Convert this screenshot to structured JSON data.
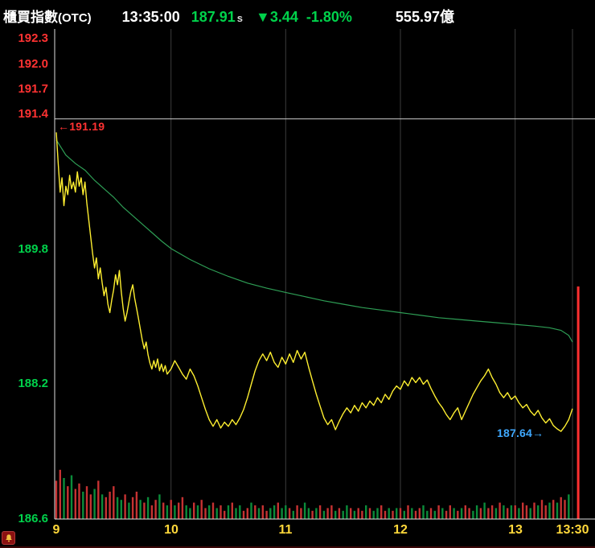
{
  "header": {
    "title": "櫃買指數",
    "title_suffix": "(OTC)",
    "time": "13:35:00",
    "price": "187.91",
    "price_flag": "s",
    "change": "▼3.44",
    "change_pct": "-1.80%",
    "turnover": "555.97億"
  },
  "colors": {
    "up_red": "#ff3232",
    "down_green": "#00d24b",
    "price_line": "#fdee30",
    "avg_line": "#2e9e55",
    "vol_red": "#c63232",
    "vol_green": "#0b8c3a",
    "spike_red": "#ff3030",
    "x_label": "#ffd83a",
    "grid": "#3c3c3c",
    "axis": "#dedede",
    "pc_line": "#cfcfcf",
    "annotation_blue": "#3fa9ff",
    "bell_bg": "#8a1111",
    "bell_glyph": "#f0c040"
  },
  "chart_data": {
    "type": "line",
    "title": "櫃買指數(OTC) intraday price / average / volume",
    "prev_close": 191.35,
    "open": 191.19,
    "last": 187.91,
    "low": 187.64,
    "annotations": {
      "open_label": "←191.19",
      "low_label": "187.64→"
    },
    "x_axis": {
      "range_minutes": [
        0,
        270
      ],
      "labels": [
        {
          "t": 0,
          "text": "9"
        },
        {
          "t": 60,
          "text": "10"
        },
        {
          "t": 120,
          "text": "11"
        },
        {
          "t": 180,
          "text": "12"
        },
        {
          "t": 240,
          "text": "13"
        },
        {
          "t": 270,
          "text": "13:30"
        }
      ]
    },
    "y_axis": {
      "min": 186.6,
      "max": 192.4,
      "labels": [
        {
          "v": 192.3,
          "tone": "up"
        },
        {
          "v": 192.0,
          "tone": "up"
        },
        {
          "v": 191.7,
          "tone": "up"
        },
        {
          "v": 191.4,
          "tone": "up"
        },
        {
          "v": 189.8,
          "tone": "down"
        },
        {
          "v": 188.2,
          "tone": "down"
        },
        {
          "v": 186.6,
          "tone": "down"
        }
      ]
    },
    "price_series": [
      [
        0,
        191.19
      ],
      [
        1,
        190.82
      ],
      [
        2,
        190.48
      ],
      [
        3,
        190.65
      ],
      [
        4,
        190.32
      ],
      [
        5,
        190.55
      ],
      [
        6,
        190.45
      ],
      [
        7,
        190.68
      ],
      [
        8,
        190.52
      ],
      [
        9,
        190.6
      ],
      [
        10,
        190.48
      ],
      [
        11,
        190.72
      ],
      [
        12,
        190.55
      ],
      [
        13,
        190.65
      ],
      [
        14,
        190.45
      ],
      [
        15,
        190.6
      ],
      [
        16,
        190.35
      ],
      [
        17,
        190.15
      ],
      [
        18,
        189.95
      ],
      [
        19,
        189.75
      ],
      [
        20,
        189.58
      ],
      [
        21,
        189.7
      ],
      [
        22,
        189.45
      ],
      [
        23,
        189.58
      ],
      [
        24,
        189.4
      ],
      [
        25,
        189.25
      ],
      [
        26,
        189.35
      ],
      [
        27,
        189.15
      ],
      [
        28,
        189.05
      ],
      [
        29,
        189.2
      ],
      [
        30,
        189.32
      ],
      [
        31,
        189.5
      ],
      [
        32,
        189.38
      ],
      [
        33,
        189.55
      ],
      [
        34,
        189.3
      ],
      [
        35,
        189.1
      ],
      [
        36,
        188.95
      ],
      [
        37,
        189.05
      ],
      [
        38,
        189.18
      ],
      [
        39,
        189.3
      ],
      [
        40,
        189.38
      ],
      [
        41,
        189.22
      ],
      [
        42,
        189.1
      ],
      [
        43,
        188.98
      ],
      [
        44,
        188.85
      ],
      [
        45,
        188.72
      ],
      [
        46,
        188.62
      ],
      [
        47,
        188.7
      ],
      [
        48,
        188.55
      ],
      [
        49,
        188.45
      ],
      [
        50,
        188.38
      ],
      [
        51,
        188.48
      ],
      [
        52,
        188.4
      ],
      [
        53,
        188.5
      ],
      [
        54,
        188.36
      ],
      [
        55,
        188.44
      ],
      [
        56,
        188.35
      ],
      [
        57,
        188.42
      ],
      [
        58,
        188.32
      ],
      [
        60,
        188.38
      ],
      [
        62,
        188.48
      ],
      [
        64,
        188.4
      ],
      [
        66,
        188.32
      ],
      [
        68,
        188.26
      ],
      [
        70,
        188.38
      ],
      [
        72,
        188.3
      ],
      [
        74,
        188.18
      ],
      [
        76,
        188.04
      ],
      [
        78,
        187.9
      ],
      [
        80,
        187.78
      ],
      [
        82,
        187.7
      ],
      [
        84,
        187.78
      ],
      [
        86,
        187.68
      ],
      [
        88,
        187.75
      ],
      [
        90,
        187.7
      ],
      [
        92,
        187.78
      ],
      [
        94,
        187.72
      ],
      [
        96,
        187.8
      ],
      [
        98,
        187.9
      ],
      [
        100,
        188.04
      ],
      [
        102,
        188.2
      ],
      [
        104,
        188.36
      ],
      [
        106,
        188.48
      ],
      [
        108,
        188.56
      ],
      [
        110,
        188.48
      ],
      [
        112,
        188.58
      ],
      [
        114,
        188.46
      ],
      [
        116,
        188.4
      ],
      [
        118,
        188.52
      ],
      [
        120,
        188.44
      ],
      [
        122,
        188.56
      ],
      [
        124,
        188.46
      ],
      [
        126,
        188.6
      ],
      [
        128,
        188.5
      ],
      [
        130,
        188.58
      ],
      [
        132,
        188.4
      ],
      [
        134,
        188.24
      ],
      [
        136,
        188.08
      ],
      [
        138,
        187.94
      ],
      [
        140,
        187.8
      ],
      [
        142,
        187.72
      ],
      [
        144,
        187.78
      ],
      [
        146,
        187.66
      ],
      [
        148,
        187.76
      ],
      [
        150,
        187.85
      ],
      [
        152,
        187.92
      ],
      [
        154,
        187.86
      ],
      [
        156,
        187.95
      ],
      [
        158,
        187.88
      ],
      [
        160,
        187.98
      ],
      [
        162,
        187.92
      ],
      [
        164,
        188.0
      ],
      [
        166,
        187.95
      ],
      [
        168,
        188.04
      ],
      [
        170,
        187.98
      ],
      [
        172,
        188.08
      ],
      [
        174,
        188.02
      ],
      [
        176,
        188.12
      ],
      [
        178,
        188.18
      ],
      [
        180,
        188.14
      ],
      [
        182,
        188.24
      ],
      [
        184,
        188.18
      ],
      [
        186,
        188.28
      ],
      [
        188,
        188.22
      ],
      [
        190,
        188.28
      ],
      [
        192,
        188.2
      ],
      [
        194,
        188.25
      ],
      [
        196,
        188.15
      ],
      [
        198,
        188.06
      ],
      [
        200,
        187.98
      ],
      [
        202,
        187.92
      ],
      [
        204,
        187.84
      ],
      [
        206,
        187.78
      ],
      [
        208,
        187.86
      ],
      [
        210,
        187.92
      ],
      [
        212,
        187.78
      ],
      [
        214,
        187.88
      ],
      [
        216,
        187.98
      ],
      [
        218,
        188.08
      ],
      [
        220,
        188.16
      ],
      [
        222,
        188.24
      ],
      [
        224,
        188.3
      ],
      [
        226,
        188.38
      ],
      [
        228,
        188.28
      ],
      [
        230,
        188.2
      ],
      [
        232,
        188.1
      ],
      [
        234,
        188.04
      ],
      [
        236,
        188.1
      ],
      [
        238,
        188.02
      ],
      [
        240,
        188.06
      ],
      [
        242,
        187.98
      ],
      [
        244,
        187.92
      ],
      [
        246,
        187.96
      ],
      [
        248,
        187.88
      ],
      [
        250,
        187.83
      ],
      [
        252,
        187.89
      ],
      [
        254,
        187.8
      ],
      [
        256,
        187.74
      ],
      [
        258,
        187.79
      ],
      [
        260,
        187.71
      ],
      [
        262,
        187.67
      ],
      [
        264,
        187.64
      ],
      [
        266,
        187.7
      ],
      [
        268,
        187.78
      ],
      [
        270,
        187.91
      ]
    ],
    "avg_series": [
      [
        0,
        191.1
      ],
      [
        5,
        190.92
      ],
      [
        10,
        190.82
      ],
      [
        15,
        190.74
      ],
      [
        20,
        190.62
      ],
      [
        25,
        190.52
      ],
      [
        30,
        190.42
      ],
      [
        35,
        190.3
      ],
      [
        40,
        190.2
      ],
      [
        45,
        190.1
      ],
      [
        50,
        190.0
      ],
      [
        55,
        189.9
      ],
      [
        60,
        189.81
      ],
      [
        70,
        189.68
      ],
      [
        80,
        189.57
      ],
      [
        90,
        189.48
      ],
      [
        100,
        189.4
      ],
      [
        110,
        189.34
      ],
      [
        120,
        189.29
      ],
      [
        130,
        189.24
      ],
      [
        140,
        189.19
      ],
      [
        150,
        189.15
      ],
      [
        160,
        189.11
      ],
      [
        170,
        189.08
      ],
      [
        180,
        189.05
      ],
      [
        190,
        189.02
      ],
      [
        200,
        188.99
      ],
      [
        210,
        188.97
      ],
      [
        220,
        188.95
      ],
      [
        230,
        188.93
      ],
      [
        240,
        188.91
      ],
      [
        250,
        188.89
      ],
      [
        258,
        188.87
      ],
      [
        264,
        188.84
      ],
      [
        268,
        188.78
      ],
      [
        270,
        188.7
      ]
    ],
    "volume": {
      "step_minutes": 2,
      "values": [
        14,
        18,
        15,
        12,
        16,
        11,
        13,
        10,
        12,
        9,
        11,
        14,
        9,
        8,
        10,
        12,
        8,
        7,
        9,
        6,
        8,
        10,
        7,
        6,
        8,
        5,
        7,
        9,
        6,
        5,
        7,
        5,
        6,
        8,
        5,
        4,
        6,
        5,
        7,
        4,
        5,
        6,
        4,
        5,
        3,
        5,
        6,
        4,
        5,
        3,
        4,
        6,
        5,
        4,
        5,
        3,
        4,
        5,
        6,
        4,
        5,
        4,
        3,
        5,
        4,
        6,
        4,
        3,
        4,
        5,
        3,
        4,
        5,
        3,
        4,
        3,
        5,
        4,
        3,
        4,
        3,
        5,
        4,
        3,
        4,
        5,
        3,
        4,
        3,
        4,
        4,
        3,
        5,
        4,
        3,
        4,
        5,
        3,
        4,
        3,
        5,
        4,
        3,
        5,
        4,
        3,
        4,
        5,
        4,
        3,
        5,
        4,
        6,
        4,
        5,
        4,
        6,
        5,
        4,
        5,
        5,
        4,
        6,
        5,
        4,
        6,
        5,
        7,
        5,
        6,
        7,
        6,
        8,
        7,
        9
      ],
      "colors": "rrgrgrrgrrgrgrrrggrgrrgrgrrgrgrgrrggrgrrgrgrrgrggrrgrgrrggrggrgrrggrgrgrrgrggrgrrgrggrrgrgrgrgrrggrgrgrrgrgrrggrgrrgrgrgrgrrgrgrrgrgrrg",
      "close_bar": {
        "t": 273,
        "v": 85,
        "color": "r"
      }
    }
  },
  "footer": {
    "bell_icon": "alert-bell"
  }
}
